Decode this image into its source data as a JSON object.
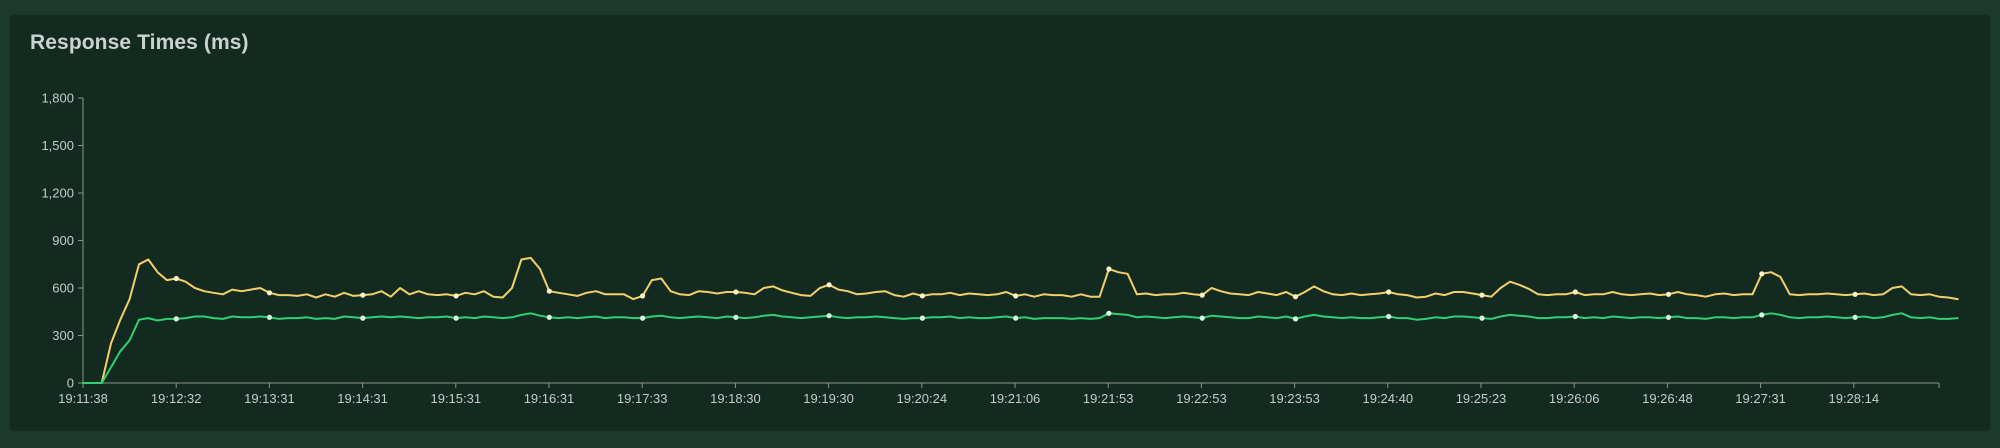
{
  "chart_data": {
    "type": "line",
    "title": "Response Times (ms)",
    "xlabel": "",
    "ylabel": "",
    "ylim": [
      0,
      1800
    ],
    "yticks": [
      0,
      300,
      600,
      900,
      1200,
      1500,
      1800
    ],
    "ytick_labels": [
      "0",
      "300",
      "600",
      "900",
      "1,200",
      "1,500",
      "1,800"
    ],
    "xtick_labels": [
      "19:11:38",
      "19:12:32",
      "19:13:31",
      "19:14:31",
      "19:15:31",
      "19:16:31",
      "19:17:33",
      "19:18:30",
      "19:19:30",
      "19:20:24",
      "19:21:06",
      "19:21:53",
      "19:22:53",
      "19:23:53",
      "19:24:40",
      "19:25:23",
      "19:26:06",
      "19:26:48",
      "19:27:31",
      "19:28:14"
    ],
    "x_count": 200,
    "grid": false,
    "series": [
      {
        "color": "#f3cf6a",
        "values": [
          0,
          0,
          0,
          250,
          400,
          530,
          750,
          780,
          700,
          650,
          660,
          640,
          600,
          580,
          570,
          560,
          590,
          580,
          590,
          600,
          570,
          555,
          555,
          550,
          560,
          540,
          560,
          545,
          570,
          550,
          555,
          560,
          580,
          545,
          600,
          560,
          580,
          560,
          555,
          560,
          550,
          570,
          560,
          580,
          545,
          540,
          600,
          780,
          790,
          720,
          580,
          570,
          560,
          550,
          570,
          580,
          560,
          560,
          560,
          530,
          550,
          650,
          660,
          580,
          560,
          555,
          580,
          575,
          565,
          575,
          575,
          570,
          560,
          600,
          610,
          585,
          570,
          555,
          550,
          600,
          620,
          590,
          580,
          560,
          565,
          575,
          580,
          555,
          545,
          565,
          550,
          560,
          560,
          570,
          555,
          565,
          560,
          555,
          560,
          575,
          550,
          560,
          545,
          560,
          555,
          555,
          545,
          560,
          545,
          545,
          720,
          700,
          690,
          560,
          565,
          555,
          560,
          560,
          570,
          560,
          555,
          600,
          580,
          565,
          560,
          555,
          575,
          565,
          555,
          575,
          545,
          575,
          610,
          580,
          560,
          555,
          565,
          555,
          560,
          565,
          575,
          560,
          555,
          540,
          545,
          565,
          555,
          575,
          575,
          565,
          555,
          545,
          600,
          640,
          620,
          595,
          560,
          555,
          560,
          560,
          575,
          555,
          560,
          560,
          575,
          560,
          555,
          560,
          565,
          555,
          560,
          575,
          560,
          555,
          545,
          560,
          565,
          555,
          560,
          560,
          690,
          700,
          670,
          560,
          555,
          560,
          560,
          565,
          560,
          555,
          560,
          565,
          555,
          560,
          600,
          610,
          560,
          555,
          560,
          545,
          540,
          530
        ]
      },
      {
        "color": "#2fd06f",
        "values": [
          0,
          0,
          0,
          100,
          200,
          270,
          400,
          410,
          395,
          405,
          405,
          410,
          420,
          420,
          410,
          405,
          420,
          415,
          415,
          420,
          415,
          405,
          410,
          410,
          415,
          405,
          410,
          405,
          420,
          415,
          410,
          415,
          420,
          415,
          420,
          415,
          410,
          415,
          415,
          420,
          410,
          415,
          410,
          420,
          415,
          410,
          415,
          430,
          440,
          425,
          415,
          410,
          415,
          410,
          415,
          420,
          410,
          415,
          415,
          410,
          410,
          420,
          425,
          415,
          410,
          415,
          420,
          415,
          410,
          420,
          415,
          410,
          415,
          425,
          430,
          420,
          415,
          410,
          415,
          420,
          425,
          415,
          410,
          415,
          415,
          420,
          415,
          410,
          405,
          410,
          410,
          415,
          415,
          420,
          410,
          415,
          410,
          410,
          415,
          420,
          410,
          415,
          405,
          410,
          410,
          410,
          405,
          410,
          405,
          410,
          440,
          435,
          430,
          415,
          420,
          415,
          410,
          415,
          420,
          415,
          410,
          425,
          420,
          415,
          410,
          410,
          420,
          415,
          410,
          420,
          405,
          420,
          430,
          420,
          415,
          410,
          415,
          410,
          410,
          415,
          420,
          410,
          410,
          400,
          405,
          415,
          410,
          420,
          420,
          415,
          410,
          405,
          420,
          430,
          425,
          420,
          410,
          410,
          415,
          415,
          420,
          410,
          415,
          410,
          420,
          415,
          410,
          415,
          415,
          410,
          415,
          420,
          410,
          410,
          405,
          415,
          415,
          410,
          415,
          415,
          430,
          440,
          430,
          415,
          410,
          415,
          415,
          420,
          415,
          410,
          415,
          420,
          410,
          415,
          430,
          440,
          415,
          410,
          415,
          405,
          405,
          410
        ]
      }
    ]
  }
}
